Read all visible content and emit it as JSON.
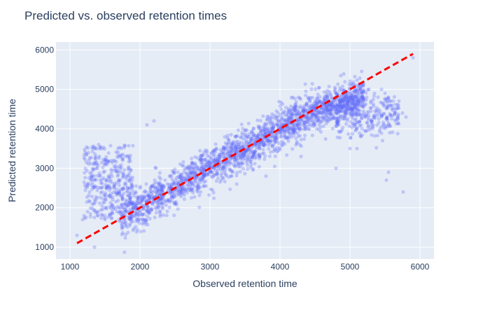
{
  "chart_data": {
    "type": "scatter",
    "title": "Predicted vs. observed retention times",
    "xlabel": "Observed retention time",
    "ylabel": "Predicted retention time",
    "xlim": [
      800,
      6200
    ],
    "ylim": [
      700,
      6200
    ],
    "x_ticks": [
      1000,
      2000,
      3000,
      4000,
      5000,
      6000
    ],
    "y_ticks": [
      1000,
      2000,
      3000,
      4000,
      5000,
      6000
    ],
    "grid": true,
    "legend": "none",
    "colors": {
      "plot_background": "#e5ecf6",
      "grid": "#ffffff",
      "points": "#636efa",
      "reference_line": "#ff0000",
      "text": "#2a3f5f"
    },
    "series": [
      {
        "mark": "points",
        "color": "#636efa",
        "opacity": 0.3,
        "approx_count": 3000,
        "description_bands": "dense band along y ≈ x from about 1700 to 5600 observed",
        "x": [
          1100,
          1180,
          1200,
          1250,
          1270,
          1300,
          1320,
          1350,
          1380,
          1400,
          1420,
          1450,
          1480,
          1500,
          1530,
          1550,
          1580,
          1600,
          1620,
          1650,
          1680,
          1700,
          1720,
          1750,
          1780,
          1800,
          1820,
          1850,
          1880,
          1900,
          1250,
          1280,
          1310,
          1340,
          1370,
          1400,
          1430,
          1460,
          1490,
          1520,
          1550,
          1580,
          1610,
          1640,
          1670,
          1700,
          1730,
          1760,
          1790,
          1820,
          1850,
          1880,
          1910,
          1940,
          1970,
          2000,
          2030,
          2060,
          2090,
          2120,
          2150,
          2180,
          2210,
          2240,
          2270,
          2300,
          2330,
          2360,
          2390,
          2420,
          2450,
          2480,
          2510,
          2540,
          2570,
          2600,
          2630,
          2660,
          2690,
          2720,
          2750,
          2780,
          2810,
          2840,
          2870,
          2900,
          2930,
          2960,
          2990,
          3020,
          3050,
          3080,
          3110,
          3140,
          3170,
          3200,
          3230,
          3260,
          3290,
          3320,
          3350,
          3380,
          3410,
          3440,
          3470,
          3500,
          3530,
          3560,
          3590,
          3620,
          3650,
          3680,
          3710,
          3740,
          3770,
          3800,
          3830,
          3860,
          3890,
          3920,
          3950,
          3980,
          4010,
          4040,
          4070,
          4100,
          4130,
          4160,
          4190,
          4220,
          4250,
          4280,
          4310,
          4340,
          4370,
          4400,
          4430,
          4460,
          4490,
          4520,
          4550,
          4580,
          4610,
          4640,
          4670,
          4700,
          4730,
          4760,
          4790,
          4820,
          4850,
          4880,
          4910,
          4940,
          4970,
          5000,
          5030,
          5060,
          5090,
          5120,
          5150,
          5180,
          5210,
          5240,
          5270,
          5300,
          5350,
          5400,
          5450,
          5500,
          5520,
          5550,
          5600,
          5650,
          5700,
          5750,
          5800,
          5900,
          1350,
          1500,
          1700,
          2100,
          2200,
          3800,
          4300,
          4500,
          4800,
          5000,
          5100,
          5520,
          5550,
          5760
        ],
        "y": [
          1300,
          1700,
          1800,
          1900,
          3200,
          2700,
          3500,
          2200,
          3000,
          1800,
          3300,
          2500,
          2900,
          2000,
          3100,
          2300,
          2700,
          1900,
          3200,
          2400,
          2800,
          1700,
          3000,
          2200,
          2600,
          1800,
          2500,
          2300,
          2100,
          2000,
          2600,
          2400,
          2900,
          2100,
          3300,
          1900,
          2700,
          2400,
          3100,
          2000,
          2800,
          2500,
          2200,
          2600,
          1900,
          2700,
          2300,
          2500,
          2100,
          2400,
          2200,
          2600,
          2300,
          2400,
          2200,
          2500,
          2300,
          2400,
          2600,
          2300,
          2500,
          2400,
          2700,
          2300,
          2600,
          2500,
          2400,
          2700,
          2600,
          2500,
          2800,
          2600,
          2700,
          2900,
          2800,
          2700,
          2900,
          3000,
          2800,
          3000,
          2900,
          3100,
          2800,
          3000,
          3200,
          3100,
          2900,
          3100,
          3300,
          3000,
          3200,
          3100,
          3300,
          3200,
          3400,
          3300,
          3100,
          3400,
          3300,
          3500,
          3200,
          3400,
          3600,
          3300,
          3500,
          3400,
          3600,
          3500,
          3700,
          3400,
          3600,
          3800,
          3500,
          3700,
          3600,
          3800,
          3700,
          3900,
          3800,
          3700,
          3900,
          4000,
          3800,
          4000,
          3900,
          4100,
          3800,
          4000,
          4200,
          3900,
          4100,
          4000,
          4200,
          4100,
          4300,
          4000,
          4200,
          4400,
          4100,
          4300,
          4200,
          4400,
          4300,
          4500,
          4200,
          4400,
          4600,
          4300,
          4500,
          4400,
          4600,
          4500,
          4700,
          4400,
          4600,
          4800,
          4500,
          4700,
          4600,
          4800,
          4700,
          4900,
          4600,
          4800,
          5000,
          4700,
          4900,
          4800,
          5000,
          4900,
          4700,
          4800,
          4600,
          4500,
          4700,
          4400,
          4300,
          5800,
          1000,
          1700,
          2000,
          4100,
          4200,
          2800,
          3300,
          4100,
          3000,
          3500,
          3500,
          2700,
          2900,
          2400
        ]
      },
      {
        "mark": "line",
        "style": "dashed",
        "color": "#ff0000",
        "x": [
          1100,
          5900
        ],
        "y": [
          1100,
          5900
        ]
      }
    ]
  }
}
